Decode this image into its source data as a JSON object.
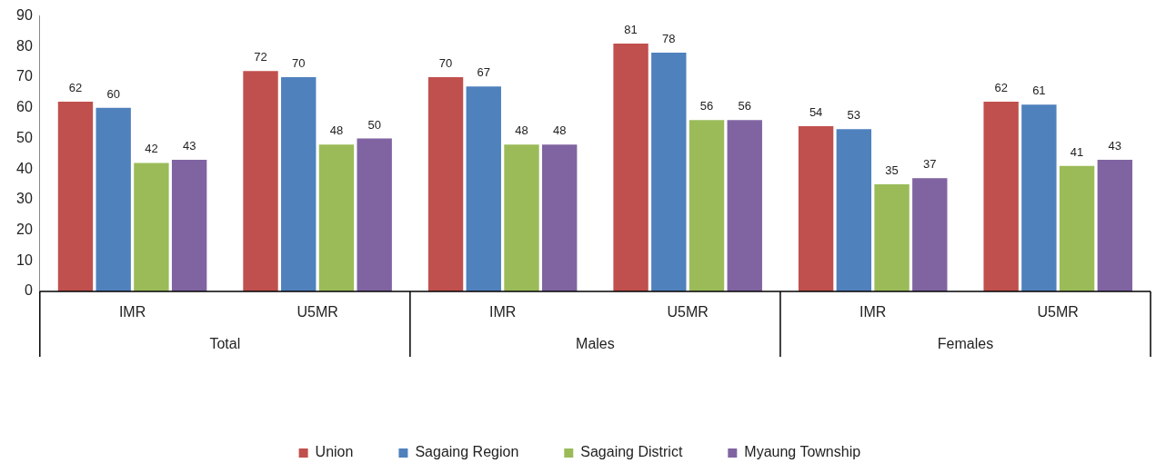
{
  "chart_data": {
    "type": "bar",
    "categories": [
      "IMR",
      "U5MR",
      "IMR",
      "U5MR",
      "IMR",
      "U5MR"
    ],
    "annotations": [
      "Total",
      "Males",
      "Females"
    ],
    "series": [
      {
        "name": "Union",
        "color": "#c0504d",
        "values": [
          62,
          72,
          70,
          81,
          54,
          62
        ]
      },
      {
        "name": "Sagaing Region",
        "color": "#4f81bd",
        "values": [
          60,
          70,
          67,
          78,
          53,
          61
        ]
      },
      {
        "name": "Sagaing District",
        "color": "#9bbb59",
        "values": [
          42,
          48,
          48,
          56,
          35,
          41
        ]
      },
      {
        "name": "Myaung Township",
        "color": "#8064a2",
        "values": [
          43,
          50,
          48,
          56,
          37,
          43
        ]
      }
    ],
    "ylim": [
      0,
      90
    ],
    "yticks": [
      0,
      10,
      20,
      30,
      40,
      50,
      60,
      70,
      80,
      90
    ],
    "grid": false,
    "data_labels": true,
    "legend": "bottom"
  }
}
